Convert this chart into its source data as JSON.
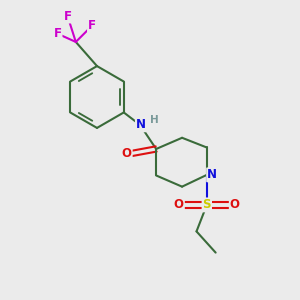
{
  "background_color": "#ebebeb",
  "bond_color": "#3a6b3a",
  "bond_width": 1.5,
  "atom_colors": {
    "N": "#1010dd",
    "O": "#dd1010",
    "S": "#cccc00",
    "F": "#cc00cc",
    "H": "#7a9a9a",
    "C": "#3a6b3a"
  },
  "font_size": 8.5,
  "figsize": [
    3.0,
    3.0
  ],
  "dpi": 100
}
